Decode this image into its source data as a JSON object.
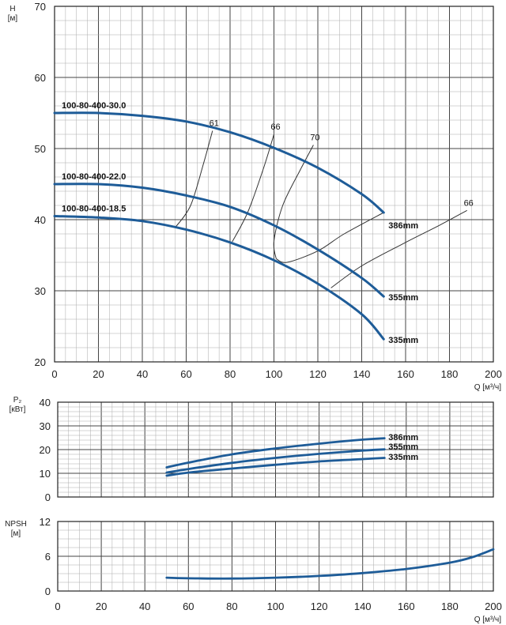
{
  "chart_data": [
    {
      "type": "line",
      "id": "head",
      "ylabel": "H",
      "yunit": "[м]",
      "xunit": "Q [м³/ч]",
      "xlim": [
        0,
        200
      ],
      "ylim": [
        20,
        70
      ],
      "xticks": [
        0,
        20,
        40,
        60,
        80,
        100,
        120,
        140,
        160,
        180,
        200
      ],
      "yticks": [
        20,
        30,
        40,
        50,
        60,
        70
      ],
      "series": [
        {
          "name": "100-80-400-30.0",
          "impeller": "386mm",
          "x": [
            0,
            20,
            40,
            60,
            80,
            100,
            120,
            140,
            150
          ],
          "y": [
            55,
            55,
            54.6,
            53.8,
            52.3,
            50.1,
            47.3,
            43.6,
            41.0
          ]
        },
        {
          "name": "100-80-400-22.0",
          "impeller": "355mm",
          "x": [
            0,
            20,
            40,
            60,
            80,
            100,
            120,
            140,
            150
          ],
          "y": [
            45,
            45,
            44.5,
            43.4,
            41.8,
            39.2,
            35.8,
            31.8,
            29.2
          ]
        },
        {
          "name": "100-80-400-18.5",
          "impeller": "335mm",
          "x": [
            0,
            20,
            40,
            60,
            80,
            100,
            120,
            140,
            150
          ],
          "y": [
            40.5,
            40.3,
            39.8,
            38.6,
            36.8,
            34.3,
            31.0,
            26.7,
            23.2
          ]
        }
      ],
      "efficiency_lines": [
        {
          "label": "61",
          "x": [
            55,
            62,
            68,
            72
          ],
          "y": [
            38.9,
            42,
            48,
            52.5
          ]
        },
        {
          "label": "66",
          "x": [
            81,
            88,
            95,
            100
          ],
          "y": [
            36.9,
            41,
            47,
            52
          ]
        },
        {
          "label": "70",
          "x": [
            101,
            100,
            104,
            112,
            118
          ],
          "y": [
            34.5,
            37,
            42,
            47,
            50.5
          ]
        },
        {
          "label": "66",
          "x": [
            126,
            140,
            160,
            176,
            188
          ],
          "y": [
            30.4,
            33.5,
            36.8,
            39.3,
            41.3
          ]
        }
      ],
      "efficiency_join": {
        "x": [
          101,
          106,
          120,
          132,
          150
        ],
        "y": [
          34.5,
          34.0,
          35.6,
          38.0,
          41.0
        ]
      }
    },
    {
      "type": "line",
      "id": "power",
      "ylabel": "P₂",
      "yunit": "[кВт]",
      "xlim": [
        50,
        200
      ],
      "ylim": [
        0,
        40
      ],
      "yticks": [
        0,
        10,
        20,
        30,
        40
      ],
      "series": [
        {
          "name": "386mm",
          "x": [
            50,
            60,
            80,
            100,
            120,
            140,
            150
          ],
          "y": [
            12.5,
            14.5,
            18.0,
            20.5,
            22.5,
            24.2,
            24.8
          ]
        },
        {
          "name": "355mm",
          "x": [
            50,
            60,
            80,
            100,
            120,
            140,
            150
          ],
          "y": [
            10.3,
            11.8,
            14.4,
            16.5,
            18.2,
            19.6,
            20.1
          ]
        },
        {
          "name": "335mm",
          "x": [
            50,
            60,
            80,
            100,
            120,
            140,
            150
          ],
          "y": [
            9.0,
            10.3,
            12.0,
            13.6,
            15.0,
            16.0,
            16.5
          ]
        }
      ]
    },
    {
      "type": "line",
      "id": "npsh",
      "ylabel": "NPSH",
      "yunit": "[м]",
      "xunit": "Q [м³/ч]",
      "xlim": [
        0,
        200
      ],
      "ylim": [
        0,
        12
      ],
      "xticks": [
        0,
        20,
        40,
        60,
        80,
        100,
        120,
        140,
        160,
        180,
        200
      ],
      "yticks": [
        0,
        6,
        12
      ],
      "series": [
        {
          "name": "NPSH",
          "x": [
            50,
            60,
            80,
            100,
            120,
            140,
            160,
            180,
            190,
            200
          ],
          "y": [
            2.3,
            2.2,
            2.15,
            2.3,
            2.6,
            3.1,
            3.8,
            4.9,
            5.8,
            7.2
          ]
        }
      ]
    }
  ],
  "colors": {
    "curve": "#1e5c98",
    "grid_major": "#444444",
    "grid_minor": "#aaaaaa",
    "eff_line": "#333333"
  }
}
